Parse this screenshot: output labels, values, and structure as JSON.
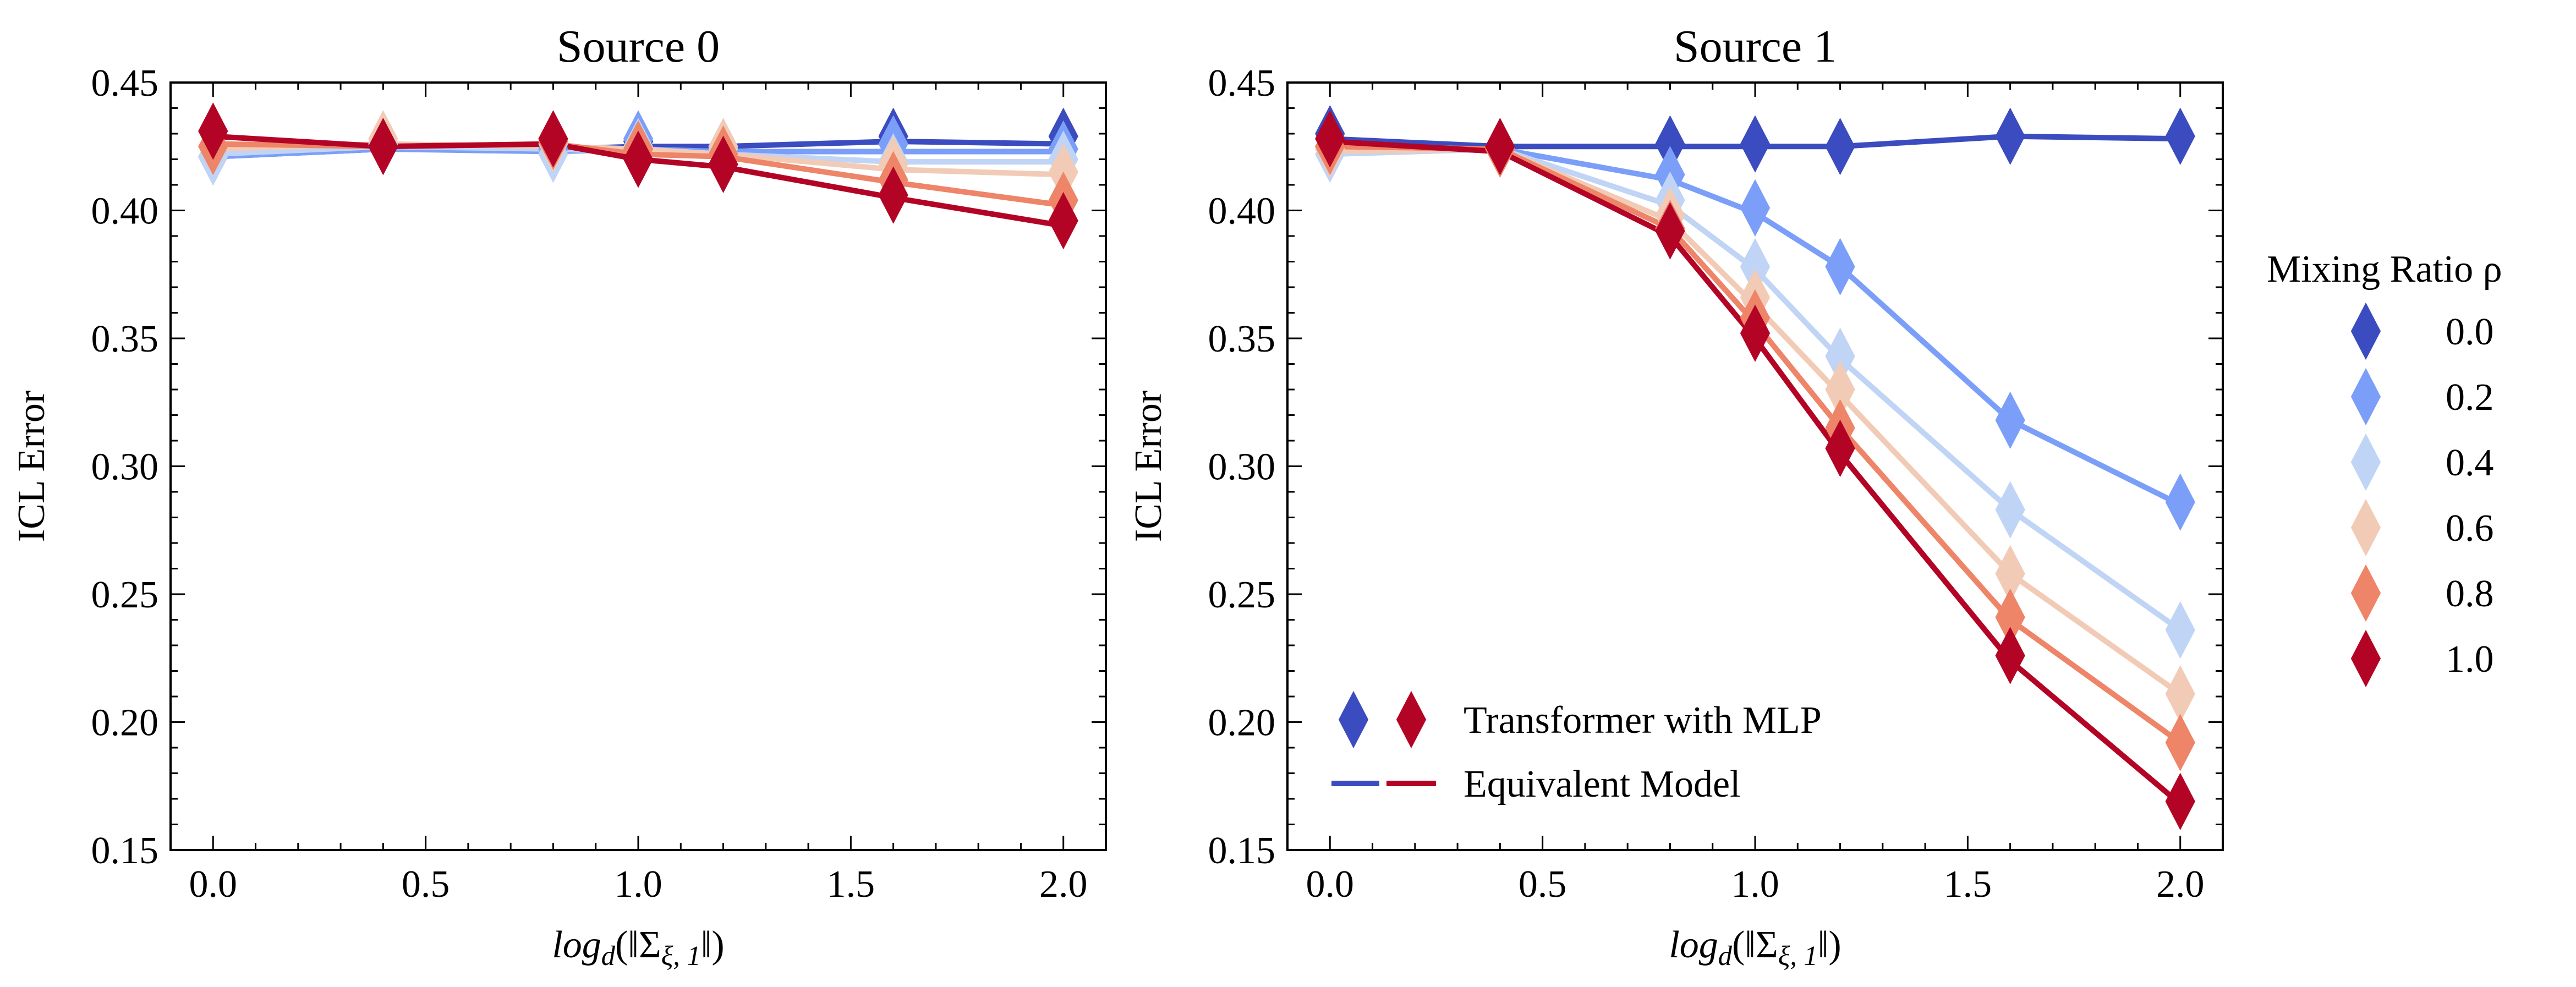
{
  "legend": {
    "title": "Mixing Ratio ρ",
    "entries": [
      {
        "label": "0.0",
        "color": "#3b4cc0"
      },
      {
        "label": "0.2",
        "color": "#7b9ff9"
      },
      {
        "label": "0.4",
        "color": "#c0d4f5"
      },
      {
        "label": "0.6",
        "color": "#f2cbb7"
      },
      {
        "label": "0.8",
        "color": "#ee8468"
      },
      {
        "label": "1.0",
        "color": "#b40426"
      }
    ],
    "inner": {
      "markers_label": "Transformer with MLP",
      "lines_label": "Equivalent Model",
      "placement": "lower-left of Source 1 panel"
    }
  },
  "chart_data": [
    {
      "type": "line",
      "title": "Source 0",
      "xlabel_base": "log",
      "xlabel_sub": "d",
      "xlabel_arg": "(‖Σ",
      "xlabel_arg_sub": "ξ, 1",
      "xlabel_close": "‖)",
      "ylabel": "ICL Error",
      "xlim": [
        -0.1,
        2.1
      ],
      "ylim": [
        0.15,
        0.45
      ],
      "xticks": [
        0.0,
        0.5,
        1.0,
        1.5,
        2.0
      ],
      "xtick_labels": [
        "0.0",
        "0.5",
        "1.0",
        "1.5",
        "2.0"
      ],
      "yticks": [
        0.15,
        0.2,
        0.25,
        0.3,
        0.35,
        0.4,
        0.45
      ],
      "ytick_labels": [
        "0.15",
        "0.20",
        "0.25",
        "0.30",
        "0.35",
        "0.40",
        "0.45"
      ],
      "x": [
        0.0,
        0.4,
        0.8,
        1.0,
        1.2,
        1.6,
        2.0
      ],
      "series": [
        {
          "name": "0.0",
          "color": "#3b4cc0",
          "line": [
            0.421,
            0.424,
            0.424,
            0.425,
            0.425,
            0.427,
            0.426
          ],
          "markers": [
            0.421,
            0.425,
            0.425,
            0.427,
            0.424,
            0.429,
            0.429
          ]
        },
        {
          "name": "0.2",
          "color": "#7b9ff9",
          "line": [
            0.421,
            0.424,
            0.423,
            0.424,
            0.423,
            0.423,
            0.423
          ],
          "markers": [
            0.421,
            0.426,
            0.424,
            0.428,
            0.424,
            0.426,
            0.424
          ]
        },
        {
          "name": "0.4",
          "color": "#c0d4f5",
          "line": [
            0.422,
            0.425,
            0.424,
            0.423,
            0.422,
            0.419,
            0.419
          ],
          "markers": [
            0.421,
            0.426,
            0.422,
            0.425,
            0.424,
            0.419,
            0.42
          ]
        },
        {
          "name": "0.6",
          "color": "#f2cbb7",
          "line": [
            0.424,
            0.426,
            0.425,
            0.424,
            0.422,
            0.416,
            0.414
          ],
          "markers": [
            0.425,
            0.428,
            0.426,
            0.424,
            0.425,
            0.418,
            0.415
          ]
        },
        {
          "name": "0.8",
          "color": "#ee8468",
          "line": [
            0.426,
            0.425,
            0.426,
            0.422,
            0.421,
            0.411,
            0.402
          ],
          "markers": [
            0.425,
            0.425,
            0.427,
            0.424,
            0.422,
            0.412,
            0.404
          ]
        },
        {
          "name": "1.0",
          "color": "#b40426",
          "line": [
            0.429,
            0.425,
            0.426,
            0.42,
            0.417,
            0.405,
            0.394
          ],
          "markers": [
            0.431,
            0.425,
            0.428,
            0.42,
            0.418,
            0.406,
            0.396
          ]
        }
      ]
    },
    {
      "type": "line",
      "title": "Source 1",
      "xlabel_base": "log",
      "xlabel_sub": "d",
      "xlabel_arg": "(‖Σ",
      "xlabel_arg_sub": "ξ, 1",
      "xlabel_close": "‖)",
      "ylabel": "ICL Error",
      "xlim": [
        -0.1,
        2.1
      ],
      "ylim": [
        0.15,
        0.45
      ],
      "xticks": [
        0.0,
        0.5,
        1.0,
        1.5,
        2.0
      ],
      "xtick_labels": [
        "0.0",
        "0.5",
        "1.0",
        "1.5",
        "2.0"
      ],
      "yticks": [
        0.15,
        0.2,
        0.25,
        0.3,
        0.35,
        0.4,
        0.45
      ],
      "ytick_labels": [
        "0.15",
        "0.20",
        "0.25",
        "0.30",
        "0.35",
        "0.40",
        "0.45"
      ],
      "x": [
        0.0,
        0.4,
        0.8,
        1.0,
        1.2,
        1.6,
        2.0
      ],
      "series": [
        {
          "name": "0.0",
          "color": "#3b4cc0",
          "line": [
            0.428,
            0.425,
            0.425,
            0.425,
            0.425,
            0.429,
            0.428
          ],
          "markers": [
            0.43,
            0.425,
            0.426,
            0.426,
            0.425,
            0.429,
            0.429
          ]
        },
        {
          "name": "0.2",
          "color": "#7b9ff9",
          "line": [
            0.424,
            0.424,
            0.412,
            0.399,
            0.378,
            0.318,
            0.285
          ],
          "markers": [
            0.425,
            0.425,
            0.414,
            0.401,
            0.378,
            0.318,
            0.286
          ]
        },
        {
          "name": "0.4",
          "color": "#c0d4f5",
          "line": [
            0.422,
            0.424,
            0.402,
            0.377,
            0.342,
            0.283,
            0.236
          ],
          "markers": [
            0.422,
            0.425,
            0.404,
            0.378,
            0.343,
            0.283,
            0.236
          ]
        },
        {
          "name": "0.6",
          "color": "#f2cbb7",
          "line": [
            0.423,
            0.424,
            0.396,
            0.363,
            0.328,
            0.258,
            0.211
          ],
          "markers": [
            0.424,
            0.424,
            0.398,
            0.366,
            0.33,
            0.258,
            0.211
          ]
        },
        {
          "name": "0.8",
          "color": "#ee8468",
          "line": [
            0.425,
            0.424,
            0.393,
            0.356,
            0.315,
            0.24,
            0.192
          ],
          "markers": [
            0.425,
            0.424,
            0.393,
            0.358,
            0.315,
            0.241,
            0.192
          ]
        },
        {
          "name": "1.0",
          "color": "#b40426",
          "line": [
            0.427,
            0.423,
            0.39,
            0.35,
            0.305,
            0.224,
            0.168
          ],
          "markers": [
            0.428,
            0.425,
            0.392,
            0.352,
            0.307,
            0.226,
            0.169
          ]
        }
      ]
    }
  ]
}
